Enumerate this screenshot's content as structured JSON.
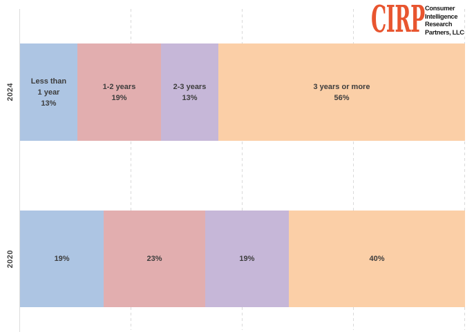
{
  "logo": {
    "brand": "CIRP",
    "brand_color": "#E8552F",
    "tagline_lines": [
      "Consumer",
      "Intelligence",
      "Research",
      "Partners, LLC"
    ]
  },
  "chart_data": {
    "type": "bar",
    "variant": "horizontal-stacked-100pct",
    "categories": [
      "2024",
      "2020"
    ],
    "series": [
      {
        "name": "Less than 1 year",
        "color": "#ADC5E3",
        "values": [
          13,
          19
        ]
      },
      {
        "name": "1-2 years",
        "color": "#E2AEAF",
        "values": [
          19,
          23
        ]
      },
      {
        "name": "2-3 years",
        "color": "#C6B7D8",
        "values": [
          13,
          19
        ]
      },
      {
        "name": "3 years or more",
        "color": "#FBCFA7",
        "values": [
          56,
          40
        ]
      }
    ],
    "value_format": "percent",
    "xlim": [
      0,
      100
    ],
    "gridlines_pct": [
      0,
      25,
      50,
      75,
      100
    ],
    "gridline_style": "dashed-vertical",
    "legend": "none",
    "labels_in_segments": true
  },
  "bars": {
    "y2024": {
      "category": "2024",
      "segments": [
        {
          "line1": "Less than",
          "line2": "1 year",
          "line3": "13%"
        },
        {
          "line1": "1-2 years",
          "line2": "19%"
        },
        {
          "line1": "2-3 years",
          "line2": "13%"
        },
        {
          "line1": "3 years or more",
          "line2": "56%"
        }
      ]
    },
    "y2020": {
      "category": "2020",
      "segments": [
        {
          "line1": "19%"
        },
        {
          "line1": "23%"
        },
        {
          "line1": "19%"
        },
        {
          "line1": "40%"
        }
      ]
    }
  }
}
